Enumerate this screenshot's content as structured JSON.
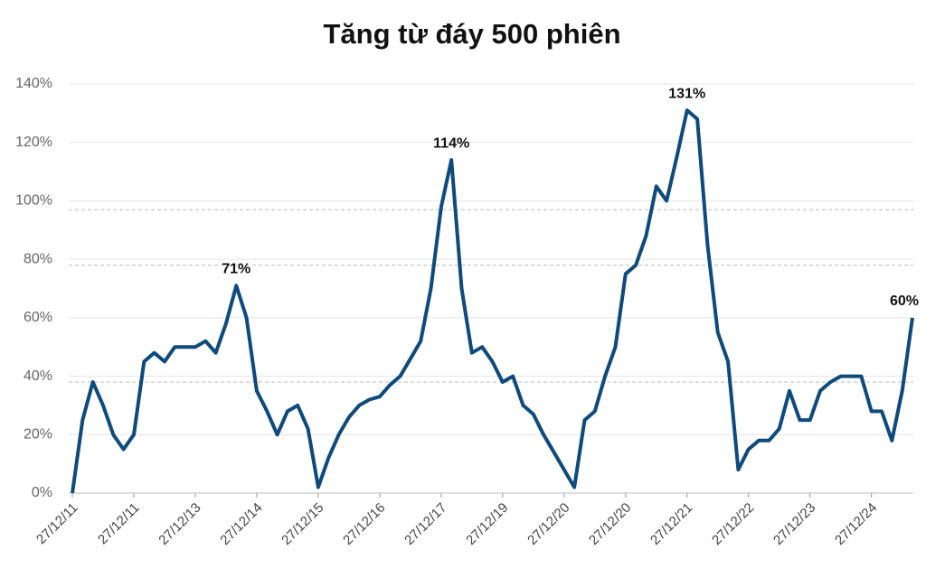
{
  "chart_data": {
    "type": "line",
    "title": "Tăng từ đáy 500 phiên",
    "categories": [
      "27/12/11",
      null,
      null,
      null,
      null,
      null,
      "27/12/11",
      null,
      null,
      null,
      null,
      null,
      "27/12/13",
      null,
      null,
      null,
      null,
      null,
      "27/12/14",
      null,
      null,
      null,
      null,
      null,
      "27/12/15",
      null,
      null,
      null,
      null,
      null,
      "27/12/16",
      null,
      null,
      null,
      null,
      null,
      "27/12/17",
      null,
      null,
      null,
      null,
      null,
      "27/12/19",
      null,
      null,
      null,
      null,
      null,
      "27/12/20",
      null,
      null,
      null,
      null,
      null,
      "27/12/20",
      null,
      null,
      null,
      null,
      null,
      "27/12/21",
      null,
      null,
      null,
      null,
      null,
      "27/12/22",
      null,
      null,
      null,
      null,
      null,
      "27/12/23",
      null,
      null,
      null,
      null,
      null,
      "27/12/24",
      null,
      null,
      null,
      null
    ],
    "series": [
      {
        "color": "#0e4a7c",
        "values": [
          0,
          25,
          38,
          30,
          20,
          15,
          20,
          45,
          48,
          45,
          50,
          50,
          50,
          52,
          48,
          58,
          71,
          60,
          35,
          28,
          20,
          28,
          30,
          22,
          2,
          12,
          20,
          26,
          30,
          32,
          33,
          37,
          40,
          46,
          52,
          70,
          98,
          114,
          70,
          48,
          50,
          45,
          38,
          40,
          30,
          27,
          20,
          14,
          8,
          2,
          25,
          28,
          40,
          50,
          75,
          78,
          88,
          105,
          100,
          115,
          131,
          128,
          85,
          55,
          45,
          8,
          15,
          18,
          18,
          22,
          35,
          25,
          25,
          35,
          38,
          40,
          40,
          40,
          28,
          28,
          18,
          35,
          60
        ],
        "value_labels": [
          null,
          null,
          null,
          null,
          null,
          null,
          null,
          null,
          null,
          null,
          null,
          null,
          null,
          null,
          null,
          null,
          "71%",
          null,
          null,
          null,
          null,
          null,
          null,
          null,
          null,
          null,
          null,
          null,
          null,
          null,
          null,
          null,
          null,
          null,
          null,
          null,
          null,
          "114%",
          null,
          null,
          null,
          null,
          null,
          null,
          null,
          null,
          null,
          null,
          null,
          null,
          null,
          null,
          null,
          null,
          null,
          null,
          null,
          null,
          null,
          null,
          "131%",
          null,
          null,
          null,
          null,
          null,
          null,
          null,
          null,
          null,
          null,
          null,
          null,
          null,
          null,
          null,
          null,
          null,
          null,
          null,
          null,
          null,
          "60%"
        ]
      }
    ],
    "ylim": [
      0,
      140
    ],
    "yticks": [
      {
        "value": 0,
        "label": "0%"
      },
      {
        "value": 20,
        "label": "20%"
      },
      {
        "value": 40,
        "label": "40%"
      },
      {
        "value": 60,
        "label": "60%"
      },
      {
        "value": 80,
        "label": "80%"
      },
      {
        "value": 100,
        "label": "100%"
      },
      {
        "value": 120,
        "label": "120%"
      },
      {
        "value": 140,
        "label": "140%"
      }
    ],
    "grid": true,
    "reference_lines": [
      97,
      78,
      38
    ]
  }
}
